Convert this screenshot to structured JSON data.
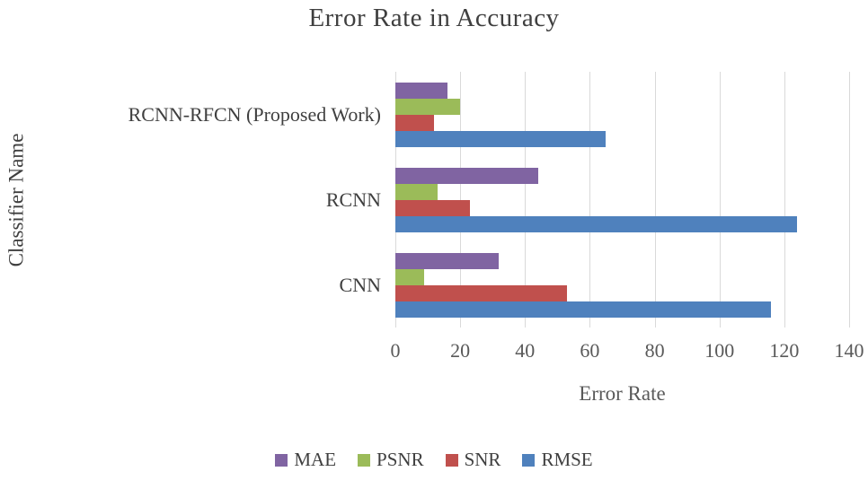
{
  "chart_data": {
    "type": "bar",
    "orientation": "horizontal",
    "title": "Error Rate in Accuracy",
    "xlabel": "Error Rate",
    "ylabel": "Classifier Name",
    "categories": [
      "RCNN-RFCN (Proposed Work)",
      "RCNN",
      "CNN"
    ],
    "series": [
      {
        "name": "MAE",
        "color": "#8064A2",
        "values": [
          16,
          44,
          32
        ]
      },
      {
        "name": "PSNR",
        "color": "#9BBB59",
        "values": [
          20,
          13,
          9
        ]
      },
      {
        "name": "SNR",
        "color": "#C0504D",
        "values": [
          12,
          23,
          53
        ]
      },
      {
        "name": "RMSE",
        "color": "#4F81BD",
        "values": [
          65,
          124,
          116
        ]
      }
    ],
    "xlim": [
      0,
      140
    ],
    "xticks": [
      0,
      20,
      40,
      60,
      80,
      100,
      120,
      140
    ],
    "grid": "vertical",
    "legend_position": "bottom",
    "legend_order": [
      "MAE",
      "PSNR",
      "SNR",
      "RMSE"
    ]
  }
}
